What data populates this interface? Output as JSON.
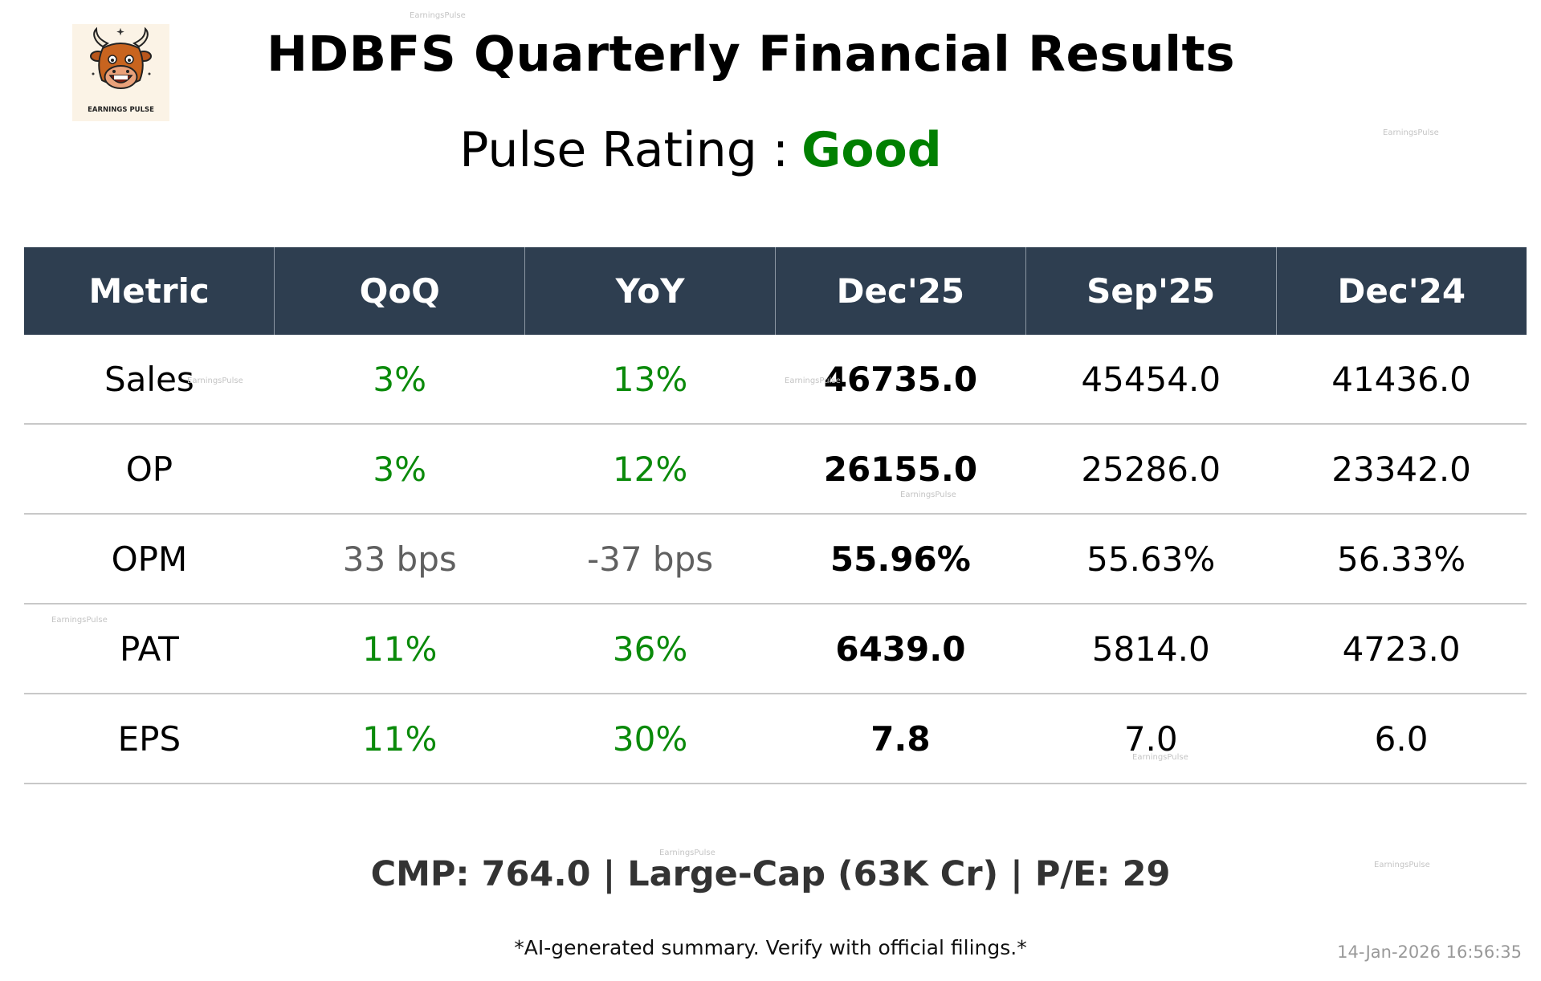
{
  "logo": {
    "text": "EARNINGS PULSE",
    "icon": "bull-mascot-icon"
  },
  "title": "HDBFS Quarterly Financial Results",
  "rating": {
    "label": "Pulse Rating :",
    "value": "Good",
    "color": "#008000"
  },
  "table": {
    "headers": [
      "Metric",
      "QoQ",
      "YoY",
      "Dec'25",
      "Sep'25",
      "Dec'24"
    ],
    "rows": [
      {
        "metric": "Sales",
        "qoq": "3%",
        "yoy": "13%",
        "dec25": "46735.0",
        "sep25": "45454.0",
        "dec24": "41436.0"
      },
      {
        "metric": "OP",
        "qoq": "3%",
        "yoy": "12%",
        "dec25": "26155.0",
        "sep25": "25286.0",
        "dec24": "23342.0"
      },
      {
        "metric": "OPM",
        "qoq": "33 bps",
        "yoy": "-37 bps",
        "dec25": "55.96%",
        "sep25": "55.63%",
        "dec24": "56.33%"
      },
      {
        "metric": "PAT",
        "qoq": "11%",
        "yoy": "36%",
        "dec25": "6439.0",
        "sep25": "5814.0",
        "dec24": "4723.0"
      },
      {
        "metric": "EPS",
        "qoq": "11%",
        "yoy": "30%",
        "dec25": "7.8",
        "sep25": "7.0",
        "dec24": "6.0"
      }
    ]
  },
  "summary": "CMP: 764.0 | Large-Cap (63K Cr) | P/E: 29",
  "disclaimer": "*AI-generated summary. Verify with official filings.*",
  "timestamp": "14-Jan-2026 16:56:35",
  "watermark": "EarningsPulse",
  "colors": {
    "header_bg": "#2e3e50",
    "positive": "#0a8a0a",
    "neutral": "#606060"
  }
}
